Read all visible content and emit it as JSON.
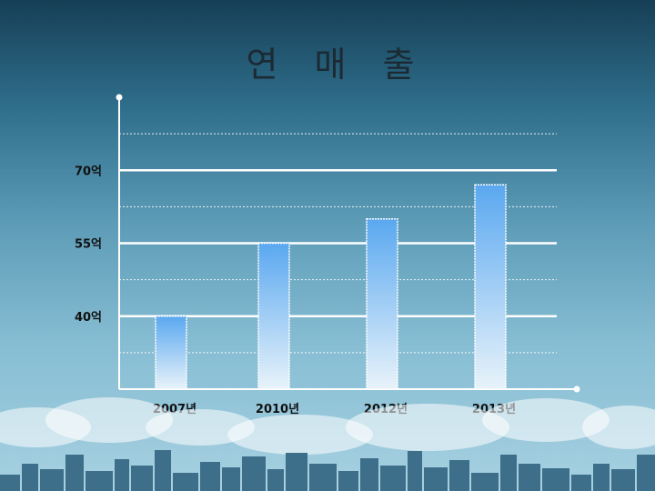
{
  "colors": {
    "bar_top": "#5aa8f0",
    "bar_bottom": "#e8f3fa",
    "grid_major": "#ffffff",
    "axis": "#ffffff"
  },
  "chart_data": {
    "type": "bar",
    "title": "연 매 출",
    "categories": [
      "2007년",
      "2010년",
      "2012년",
      "2013년"
    ],
    "values": [
      40,
      55,
      60,
      67
    ],
    "yticks": [
      {
        "value": 40,
        "label": "40억"
      },
      {
        "value": 55,
        "label": "55억"
      },
      {
        "value": 70,
        "label": "70억"
      }
    ],
    "ylim": [
      25,
      85
    ],
    "grid": true,
    "xlabel": "",
    "ylabel": ""
  }
}
